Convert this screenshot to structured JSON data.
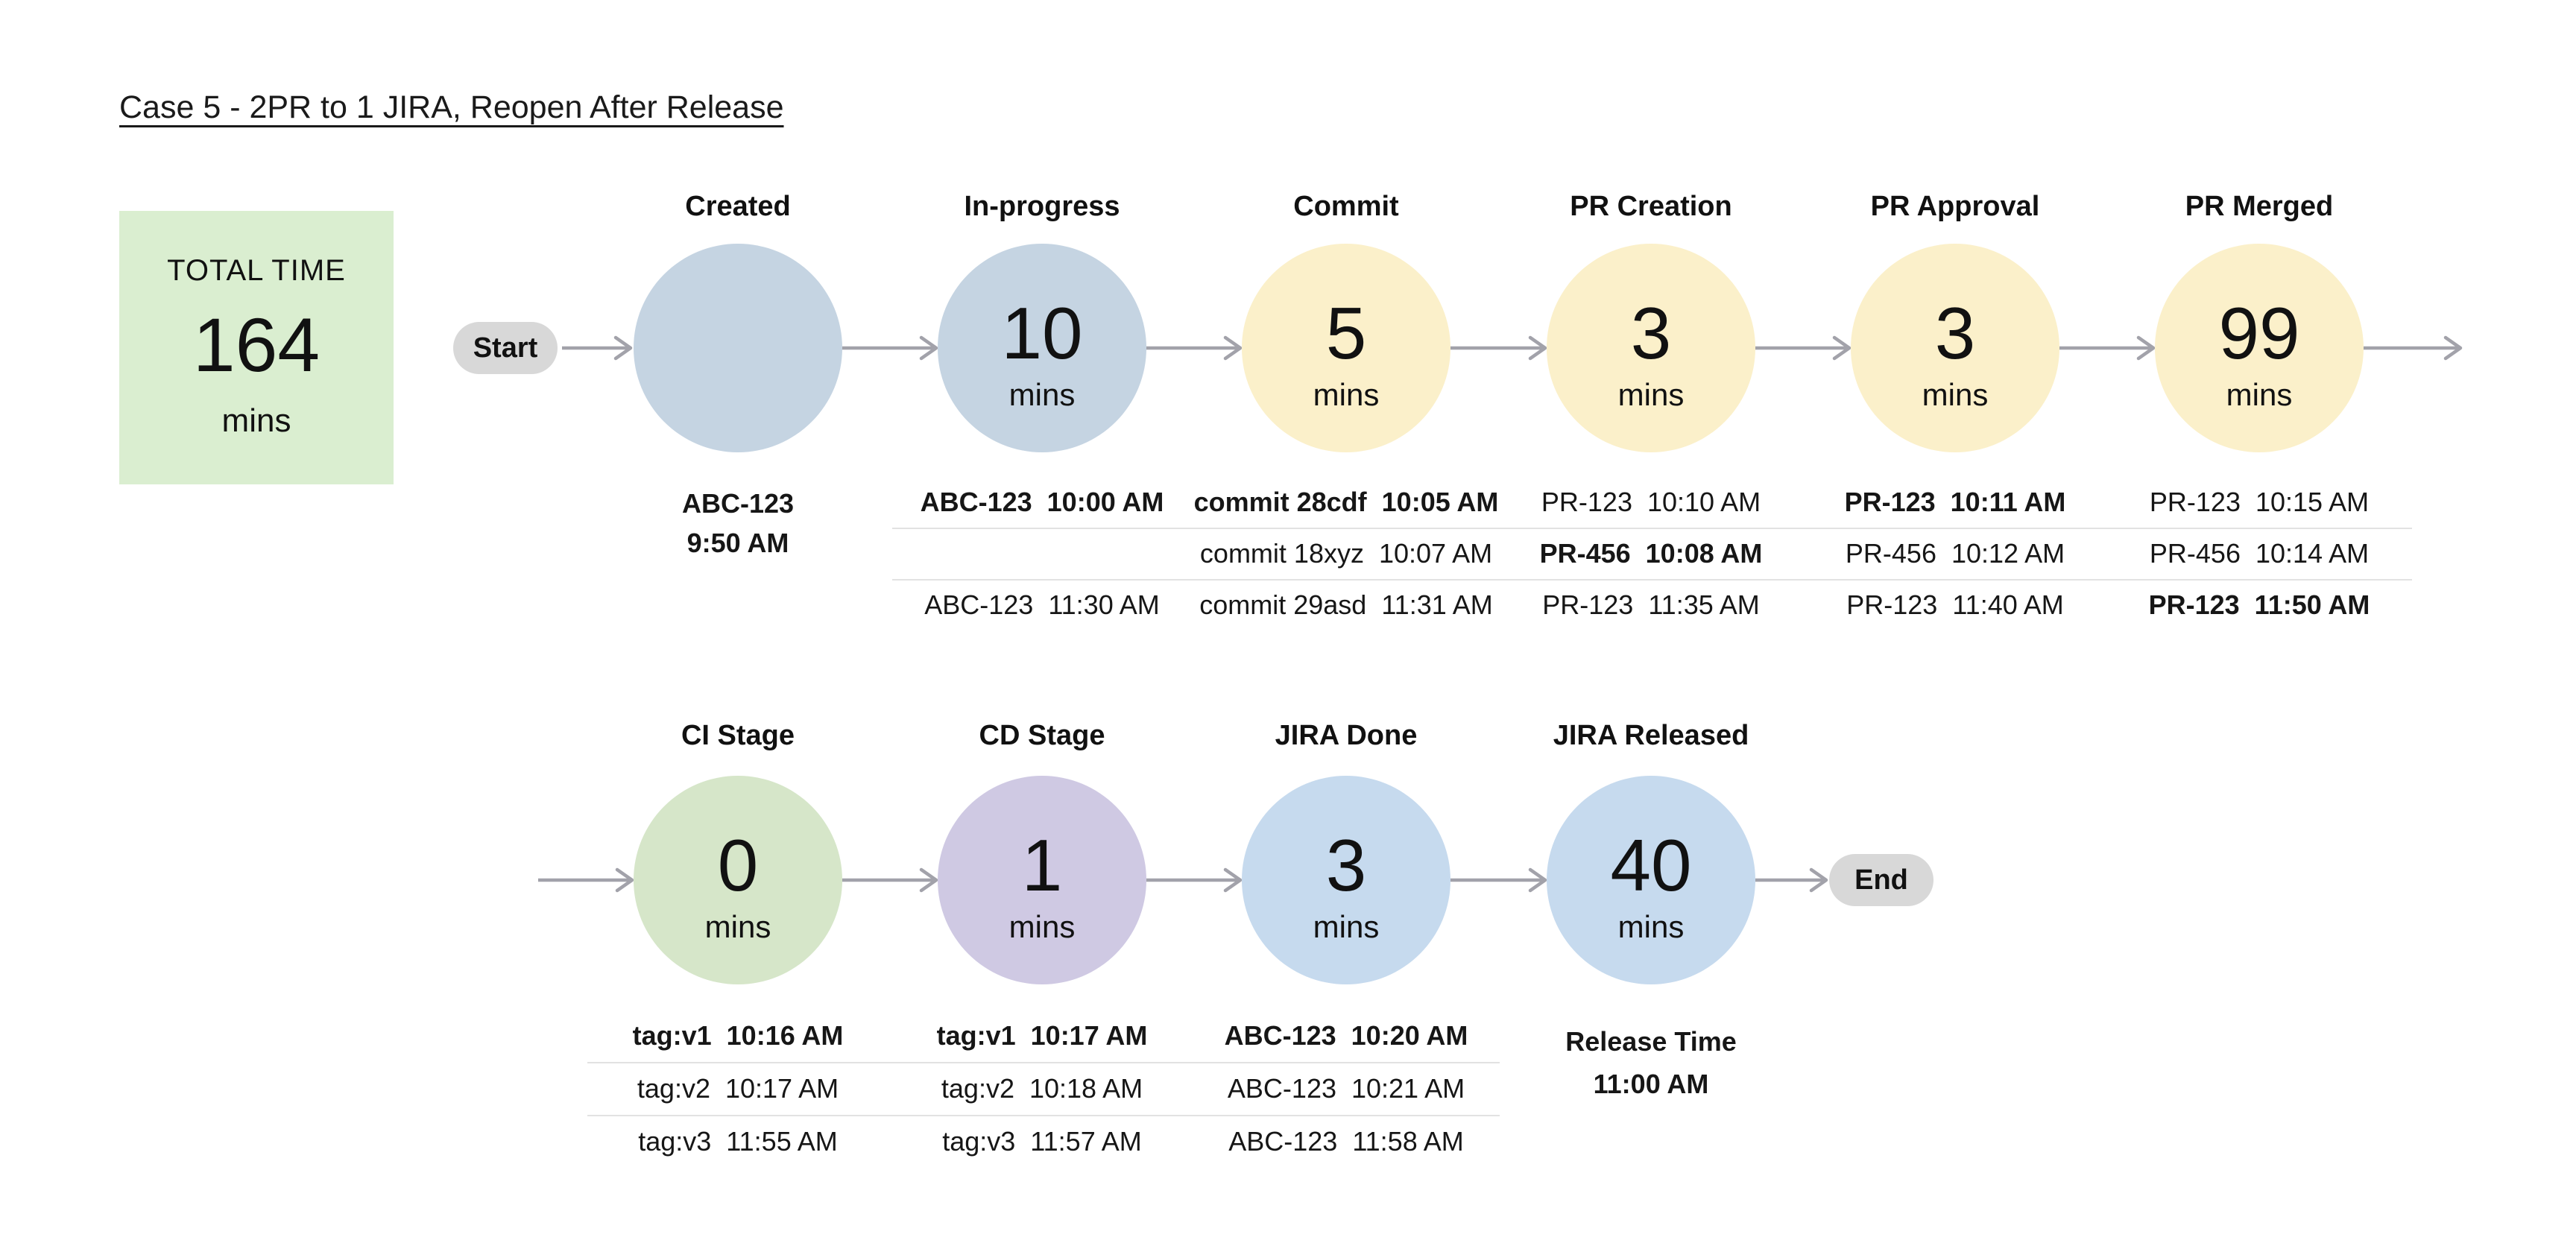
{
  "title": "Case 5 - 2PR to 1 JIRA, Reopen After Release",
  "total_time": {
    "label": "TOTAL TIME",
    "value": "164",
    "unit": "mins"
  },
  "colors": {
    "blue_gray": "#c5d4e2",
    "yellow": "#fbf0ca",
    "green": "#d6e6c9",
    "purple": "#cfc9e3",
    "blue": "#c6daee",
    "pill": "#d8d8d8",
    "arrow": "#a2a2aa",
    "divider": "#e2e2e2",
    "total_bg": "#daeed0"
  },
  "flow1": {
    "start_label": "Start",
    "stages": [
      {
        "header": "Created",
        "color": "blue_gray",
        "notes": [
          {
            "text": "ABC-123",
            "bold": true
          },
          {
            "text": "9:50 AM",
            "bold": true
          }
        ]
      },
      {
        "header": "In-progress",
        "value": "10",
        "unit": "mins",
        "color": "blue_gray",
        "rows": [
          {
            "text": "ABC-123  10:00 AM",
            "bold": true
          },
          {
            "text": "",
            "bold": false
          },
          {
            "text": "ABC-123  11:30 AM",
            "bold": false
          }
        ]
      },
      {
        "header": "Commit",
        "value": "5",
        "unit": "mins",
        "color": "yellow",
        "rows": [
          {
            "text": "commit 28cdf  10:05 AM",
            "bold": true
          },
          {
            "text": "commit 18xyz  10:07 AM",
            "bold": false
          },
          {
            "text": "commit 29asd  11:31 AM",
            "bold": false
          }
        ]
      },
      {
        "header": "PR Creation",
        "value": "3",
        "unit": "mins",
        "color": "yellow",
        "rows": [
          {
            "text": "PR-123  10:10 AM",
            "bold": false
          },
          {
            "text": "PR-456  10:08 AM",
            "bold": true
          },
          {
            "text": "PR-123  11:35 AM",
            "bold": false
          }
        ]
      },
      {
        "header": "PR Approval",
        "value": "3",
        "unit": "mins",
        "color": "yellow",
        "rows": [
          {
            "text": "PR-123  10:11 AM",
            "bold": true
          },
          {
            "text": "PR-456  10:12 AM",
            "bold": false
          },
          {
            "text": "PR-123  11:40 AM",
            "bold": false
          }
        ]
      },
      {
        "header": "PR Merged",
        "value": "99",
        "unit": "mins",
        "color": "yellow",
        "rows": [
          {
            "text": "PR-123  10:15 AM",
            "bold": false
          },
          {
            "text": "PR-456  10:14 AM",
            "bold": false
          },
          {
            "text": "PR-123  11:50 AM",
            "bold": true
          }
        ]
      }
    ]
  },
  "flow2": {
    "end_label": "End",
    "stages": [
      {
        "header": "CI Stage",
        "value": "0",
        "unit": "mins",
        "color": "green",
        "rows": [
          {
            "text": "tag:v1  10:16 AM",
            "bold": true
          },
          {
            "text": "tag:v2  10:17 AM",
            "bold": false
          },
          {
            "text": "tag:v3  11:55 AM",
            "bold": false
          }
        ]
      },
      {
        "header": "CD Stage",
        "value": "1",
        "unit": "mins",
        "color": "purple",
        "rows": [
          {
            "text": "tag:v1  10:17 AM",
            "bold": true
          },
          {
            "text": "tag:v2  10:18 AM",
            "bold": false
          },
          {
            "text": "tag:v3  11:57 AM",
            "bold": false
          }
        ]
      },
      {
        "header": "JIRA Done",
        "value": "3",
        "unit": "mins",
        "color": "blue",
        "rows": [
          {
            "text": "ABC-123  10:20 AM",
            "bold": true
          },
          {
            "text": "ABC-123  10:21 AM",
            "bold": false
          },
          {
            "text": "ABC-123  11:58 AM",
            "bold": false
          }
        ]
      },
      {
        "header": "JIRA Released",
        "value": "40",
        "unit": "mins",
        "color": "blue",
        "notes": [
          {
            "text": "Release Time",
            "bold": true
          },
          {
            "text": "11:00 AM",
            "bold": true
          }
        ]
      }
    ]
  }
}
